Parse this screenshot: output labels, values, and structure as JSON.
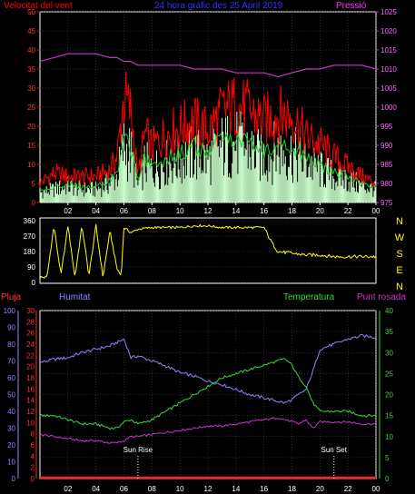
{
  "header": {
    "wind_title": "Velocitat del vent",
    "center_title": "24 hora gràfic des   25 April 2019",
    "pressure_title": "Pressió"
  },
  "bottom_header": {
    "rain": "Pluja",
    "humidity": "Humitat",
    "temperature": "Temperatura",
    "dewpoint": "Punt rosada"
  },
  "annotations": {
    "sunrise": "Sun Rise",
    "sunset": "Sun Set"
  },
  "colors": {
    "wind_gust": "#ff0000",
    "wind_avg": "#22cc22",
    "wind_dir_scatter": "#ccffcc",
    "pressure": "#cc33cc",
    "direction": "#ffff00",
    "rain": "#ff2222",
    "humidity": "#8888ff",
    "temperature": "#33dd33",
    "dewpoint": "#cc33cc",
    "frame": "#ffffff",
    "grid": "#555555"
  },
  "chart_data": [
    {
      "type": "line",
      "title": "Velocitat del vent",
      "x_ticks": [
        "02",
        "04",
        "06",
        "08",
        "10",
        "12",
        "14",
        "16",
        "18",
        "20",
        "22",
        "00"
      ],
      "xlim": [
        0,
        24
      ],
      "ylim": [
        0,
        50
      ],
      "y_ticks": [
        0,
        5,
        10,
        15,
        20,
        25,
        30,
        35,
        40,
        45,
        50
      ],
      "y2lim": [
        975,
        1025
      ],
      "y2_ticks": [
        975,
        980,
        985,
        990,
        995,
        1000,
        1005,
        1010,
        1015,
        1020,
        1025
      ],
      "x": [
        0,
        1,
        2,
        3,
        4,
        5,
        5.5,
        6,
        6.5,
        7,
        7.5,
        8,
        9,
        10,
        11,
        12,
        13,
        14,
        15,
        16,
        17,
        18,
        19,
        20,
        21,
        22,
        23,
        24
      ],
      "series": [
        {
          "role": "gust",
          "values": [
            6,
            9,
            8,
            8,
            8,
            10,
            14,
            32,
            28,
            8,
            21,
            17,
            21,
            23,
            25,
            22,
            28,
            30,
            28,
            25,
            27,
            27,
            20,
            18,
            14,
            11,
            8,
            6
          ]
        },
        {
          "role": "average",
          "values": [
            3,
            4,
            5,
            4,
            4,
            6,
            8,
            17,
            15,
            5,
            12,
            10,
            12,
            13,
            15,
            13,
            17,
            18,
            16,
            14,
            16,
            15,
            12,
            10,
            8,
            7,
            5,
            4
          ]
        },
        {
          "role": "pressure",
          "axis": "right",
          "values": [
            1012,
            1013,
            1014,
            1014,
            1014,
            1013,
            1013,
            1012,
            1012,
            1011,
            1011,
            1011,
            1011,
            1011,
            1010,
            1010,
            1010,
            1009,
            1009,
            1009,
            1008,
            1009,
            1010,
            1010,
            1011,
            1011,
            1011,
            1010
          ]
        }
      ]
    },
    {
      "type": "scatter",
      "right_labels": [
        "N",
        "W",
        "S",
        "E",
        "N"
      ],
      "y_ticks": [
        0,
        90,
        180,
        270,
        360
      ],
      "ylim": [
        0,
        360
      ],
      "xlim": [
        0,
        24
      ],
      "x": [
        0.5,
        1,
        1.5,
        2,
        2.5,
        3,
        3.5,
        4,
        4.5,
        5,
        5.5,
        5.8,
        6,
        6.5,
        7,
        8,
        9,
        10,
        11,
        12,
        13,
        14,
        15,
        16,
        16.5,
        17,
        18,
        19,
        20,
        21,
        22,
        23,
        23.5
      ],
      "values": [
        30,
        330,
        40,
        330,
        30,
        330,
        40,
        330,
        30,
        300,
        80,
        40,
        320,
        290,
        310,
        320,
        320,
        320,
        330,
        330,
        320,
        320,
        320,
        320,
        240,
        180,
        170,
        160,
        160,
        150,
        150,
        150,
        150
      ]
    },
    {
      "type": "line",
      "x_ticks": [
        "02",
        "04",
        "06",
        "08",
        "10",
        "12",
        "14",
        "16",
        "18",
        "20",
        "22",
        "00"
      ],
      "xlim": [
        0,
        24
      ],
      "left_axes": [
        {
          "name": "Humitat",
          "ylim": [
            0,
            100
          ],
          "ticks": [
            0,
            10,
            20,
            30,
            40,
            50,
            60,
            70,
            80,
            90,
            100
          ]
        },
        {
          "name": "Pluja",
          "ylim": [
            0,
            30
          ],
          "ticks": [
            0,
            2,
            4,
            6,
            8,
            10,
            12,
            14,
            16,
            18,
            20,
            22,
            24,
            26,
            28,
            30
          ]
        }
      ],
      "right_axis": {
        "ylim": [
          0,
          40
        ],
        "ticks": [
          0,
          5,
          10,
          15,
          20,
          25,
          30,
          35,
          40
        ]
      },
      "x": [
        0,
        1,
        2,
        3,
        4,
        5,
        5.5,
        6,
        6.5,
        7,
        8,
        9,
        10,
        11,
        12,
        13,
        14,
        15,
        16,
        17,
        17.5,
        18,
        18.5,
        19,
        19.5,
        20,
        21,
        22,
        23,
        24
      ],
      "series": [
        {
          "name": "Humitat",
          "values": [
            69,
            71,
            72,
            75,
            77,
            79,
            81,
            83,
            72,
            73,
            70,
            67,
            63,
            61,
            58,
            56,
            53,
            50,
            48,
            46,
            45,
            47,
            50,
            53,
            64,
            77,
            80,
            83,
            85,
            84
          ]
        },
        {
          "name": "Temperatura",
          "values": [
            15,
            15,
            14,
            13,
            13,
            12,
            12,
            13.5,
            14,
            13,
            14,
            16,
            18,
            20,
            22,
            24,
            25,
            26,
            27,
            28,
            28.5,
            27,
            24,
            22,
            18,
            16,
            16,
            16,
            15,
            15
          ]
        },
        {
          "name": "Punt rosada",
          "values": [
            10.5,
            10,
            9.5,
            9,
            9,
            8.5,
            8.5,
            9,
            10,
            10,
            10.5,
            11,
            11.5,
            12,
            12.5,
            12.5,
            13,
            13.5,
            14,
            14.5,
            14,
            13.5,
            13,
            14,
            12,
            13.5,
            13.5,
            13.5,
            13,
            13
          ]
        },
        {
          "name": "Pluja",
          "values": [
            0,
            0,
            0,
            0,
            0,
            0,
            0,
            0,
            0,
            0,
            0,
            0,
            0,
            0,
            0,
            0,
            0,
            0,
            0,
            0,
            0,
            0,
            0,
            0,
            0,
            0,
            0,
            0,
            0,
            0
          ]
        }
      ],
      "markers": [
        {
          "label": "Sun Rise",
          "x": 7
        },
        {
          "label": "Sun Set",
          "x": 21
        }
      ]
    }
  ]
}
